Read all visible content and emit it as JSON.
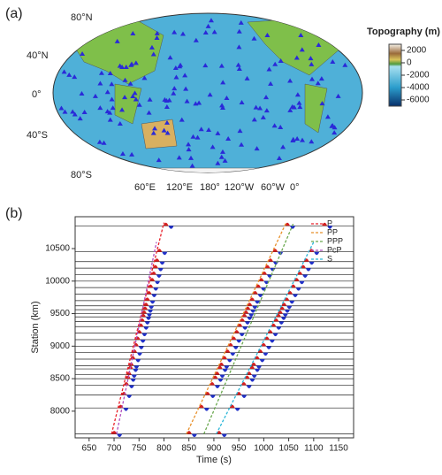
{
  "panel_a": {
    "label": "(a)",
    "lat_labels": [
      "80°N",
      "40°N",
      "0°",
      "40°S",
      "80°S"
    ],
    "lon_labels": [
      "60°E",
      "120°E",
      "180°",
      "120°W",
      "60°W",
      "0°"
    ],
    "colorbar": {
      "title": "Topography (m)",
      "lim": [
        -7000,
        3000
      ],
      "ticks": [
        2000,
        0,
        -2000,
        -4000,
        -6000
      ]
    }
  },
  "chart_data": {
    "type": "line",
    "label": "(b)",
    "xlabel": "Time (s)",
    "ylabel": "Station (km)",
    "xlim": [
      622,
      1180
    ],
    "ylim": [
      7590,
      10990
    ],
    "xticks": [
      650,
      700,
      750,
      800,
      850,
      900,
      950,
      1000,
      1050,
      1100,
      1150
    ],
    "yticks": [
      8000,
      8500,
      9000,
      9500,
      10000,
      10500
    ],
    "stations": [
      7650,
      8050,
      8250,
      8400,
      8500,
      8560,
      8650,
      8700,
      8800,
      8900,
      9000,
      9100,
      9200,
      9300,
      9380,
      9450,
      9500,
      9560,
      9620,
      9700,
      9800,
      9900,
      10000,
      10100,
      10200,
      10300,
      10450,
      10850
    ],
    "legend": "upper right",
    "series": [
      {
        "name": "P",
        "color": "#e8202a",
        "x": [
          695,
          800
        ],
        "values": [
          7650,
          10900
        ]
      },
      {
        "name": "PP",
        "color": "#e8902a",
        "x": [
          845,
          1045
        ],
        "values": [
          7650,
          10900
        ]
      },
      {
        "name": "PPP",
        "color": "#6aa84f",
        "x": [
          880,
          1060
        ],
        "values": [
          7650,
          10900
        ]
      },
      {
        "name": "PcP",
        "color": "#b04fc0",
        "x": [
          705,
          785
        ],
        "values": [
          7650,
          10600
        ]
      },
      {
        "name": "S",
        "color": "#29b6d8",
        "x": [
          905,
          1100
        ],
        "values": [
          7650,
          10600
        ]
      }
    ]
  }
}
